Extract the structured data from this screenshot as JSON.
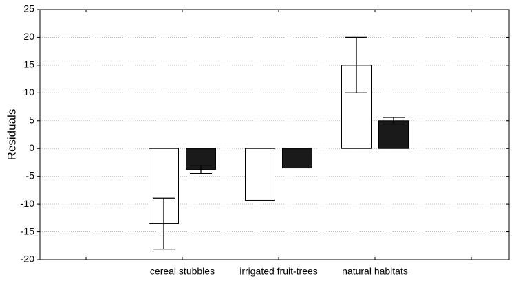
{
  "chart_data": {
    "type": "bar",
    "ylabel": "Residuals",
    "categories": [
      null,
      "cereal stubbles",
      "irrigated fruit-trees",
      "natural habitats",
      null
    ],
    "series": [
      {
        "color": "#ffffff",
        "values": [
          null,
          -13.5,
          -9.3,
          15,
          null
        ],
        "errors": [
          null,
          4.6,
          null,
          5,
          null
        ]
      },
      {
        "color": "#1a1a1a",
        "values": [
          null,
          -3.8,
          -3.5,
          5,
          null
        ],
        "errors": [
          null,
          0.7,
          null,
          0.6,
          null
        ]
      }
    ],
    "ylim": [
      -20,
      25
    ],
    "yticks": [
      -20,
      -15,
      -10,
      -5,
      0,
      5,
      10,
      15,
      20,
      25
    ],
    "grid": true
  }
}
